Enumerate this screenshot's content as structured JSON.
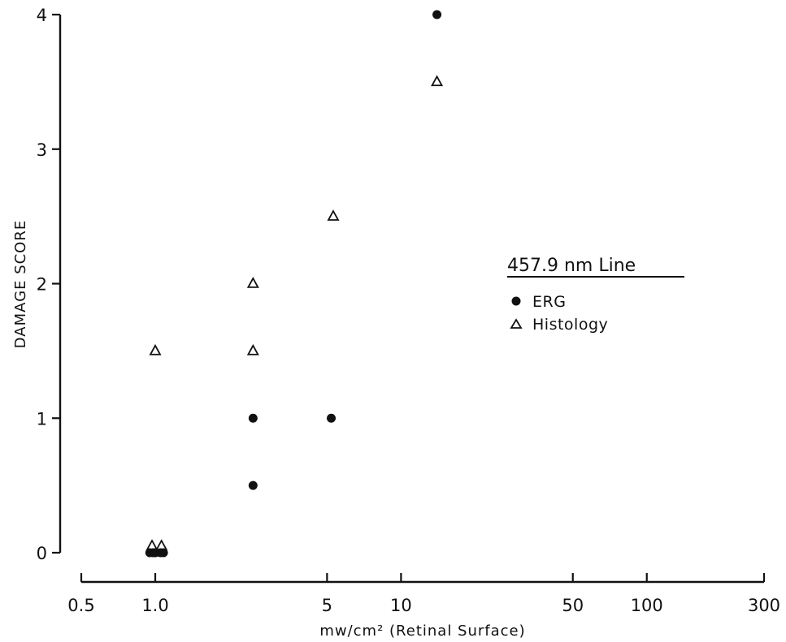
{
  "chart_data": {
    "type": "scatter",
    "xlabel": "mw/cm² (Retinal Surface)",
    "ylabel": "DAMAGE SCORE",
    "x_scale": "log",
    "xlim": [
      0.5,
      300
    ],
    "ylim": [
      0,
      4
    ],
    "x_ticks": [
      0.5,
      1.0,
      5,
      10,
      50,
      100,
      300
    ],
    "x_tick_labels": [
      "0.5",
      "1.0",
      "5",
      "10",
      "50",
      "100",
      "300"
    ],
    "y_ticks": [
      0,
      1,
      2,
      3,
      4
    ],
    "y_tick_labels": [
      "0",
      "1",
      "2",
      "3",
      "4"
    ],
    "grid": false,
    "legend": {
      "title": "457.9 nm Line",
      "placement": "right",
      "entries": [
        {
          "label": "ERG",
          "marker": "filled-circle"
        },
        {
          "label": "Histology",
          "marker": "open-triangle"
        }
      ]
    },
    "series": [
      {
        "name": "ERG",
        "marker": "filled-circle",
        "points": [
          {
            "x": 0.95,
            "y": 0
          },
          {
            "x": 0.98,
            "y": 0
          },
          {
            "x": 1.0,
            "y": 0
          },
          {
            "x": 1.05,
            "y": 0
          },
          {
            "x": 1.08,
            "y": 0
          },
          {
            "x": 2.5,
            "y": 1
          },
          {
            "x": 2.5,
            "y": 0.5
          },
          {
            "x": 5.2,
            "y": 1
          },
          {
            "x": 14,
            "y": 4
          }
        ]
      },
      {
        "name": "Histology",
        "marker": "open-triangle",
        "points": [
          {
            "x": 0.97,
            "y": 0.05
          },
          {
            "x": 1.06,
            "y": 0.05
          },
          {
            "x": 1.0,
            "y": 1.5
          },
          {
            "x": 2.5,
            "y": 2
          },
          {
            "x": 2.5,
            "y": 1.5
          },
          {
            "x": 5.3,
            "y": 2.5
          },
          {
            "x": 14,
            "y": 3.5
          }
        ]
      }
    ]
  }
}
